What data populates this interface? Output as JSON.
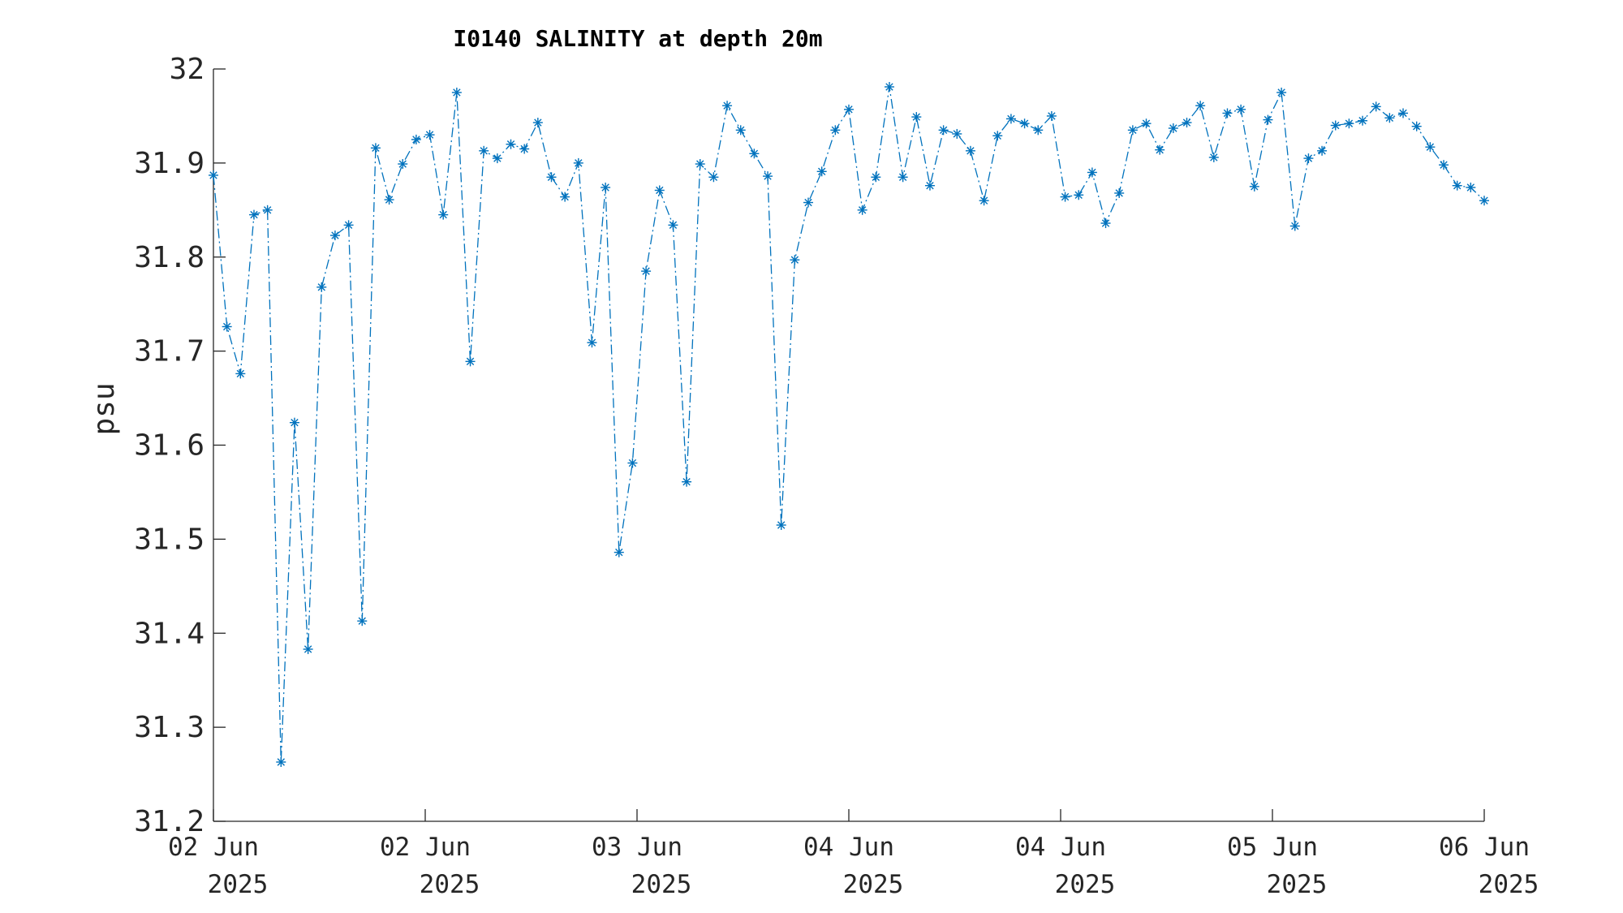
{
  "chart_data": {
    "type": "line",
    "title": "I0140 SALINITY at depth 20m",
    "xlabel": "",
    "ylabel": "psu",
    "ylim": [
      31.2,
      32.0
    ],
    "yticks": [
      "31.2",
      "31.3",
      "31.4",
      "31.5",
      "31.6",
      "31.7",
      "31.8",
      "31.9",
      "32"
    ],
    "xticks": [
      {
        "line1": "02 Jun",
        "line2": "2025"
      },
      {
        "line1": "02 Jun",
        "line2": "2025"
      },
      {
        "line1": "03 Jun",
        "line2": "2025"
      },
      {
        "line1": "04 Jun",
        "line2": "2025"
      },
      {
        "line1": "04 Jun",
        "line2": "2025"
      },
      {
        "line1": "05 Jun",
        "line2": "2025"
      },
      {
        "line1": "06 Jun",
        "line2": "2025"
      }
    ],
    "grid": false,
    "line_style": "dash-dot",
    "marker": "asterisk",
    "colors": {
      "series": "#0072BD",
      "axis": "#262626"
    },
    "series": [
      {
        "values": [
          31.887,
          31.726,
          31.676,
          31.845,
          31.85,
          31.263,
          31.624,
          31.383,
          31.768,
          31.823,
          31.834,
          31.413,
          31.916,
          31.861,
          31.899,
          31.925,
          31.93,
          31.845,
          31.975,
          31.689,
          31.913,
          31.905,
          31.92,
          31.915,
          31.943,
          31.885,
          31.864,
          31.9,
          31.709,
          31.874,
          31.486,
          31.581,
          31.785,
          31.871,
          31.834,
          31.561,
          31.899,
          31.885,
          31.961,
          31.935,
          31.91,
          31.886,
          31.515,
          31.797,
          31.858,
          31.891,
          31.935,
          31.957,
          31.85,
          31.885,
          31.981,
          31.885,
          31.949,
          31.876,
          31.935,
          31.931,
          31.913,
          31.86,
          31.929,
          31.947,
          31.942,
          31.935,
          31.95,
          31.864,
          31.866,
          31.89,
          31.836,
          31.868,
          31.935,
          31.942,
          31.914,
          31.937,
          31.943,
          31.961,
          31.906,
          31.953,
          31.957,
          31.875,
          31.946,
          31.975,
          31.833,
          31.905,
          31.913,
          31.94,
          31.942,
          31.945,
          31.96,
          31.948,
          31.953,
          31.939,
          31.917,
          31.898,
          31.876,
          31.874,
          31.86
        ]
      }
    ]
  }
}
